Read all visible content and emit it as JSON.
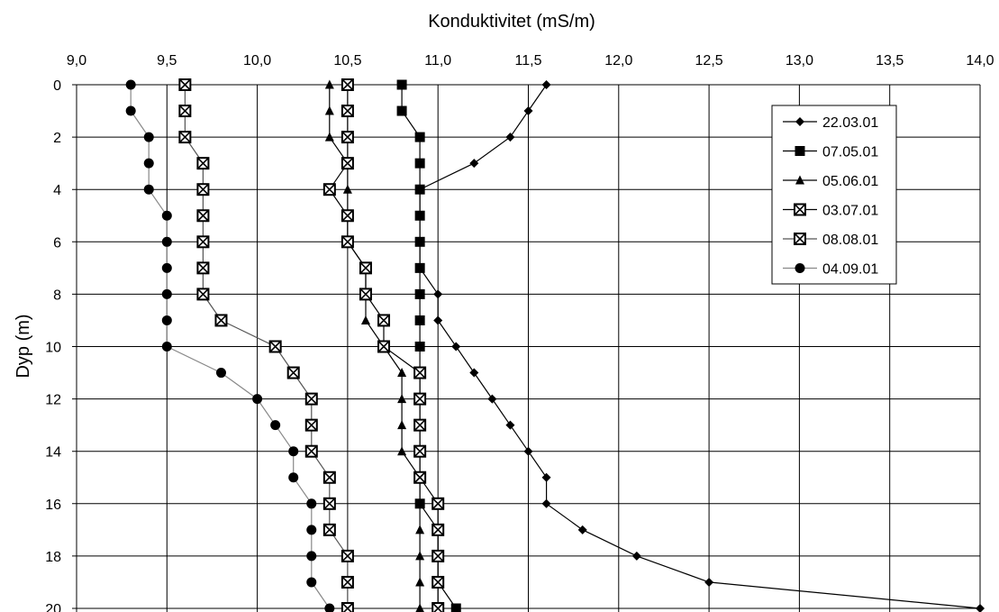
{
  "chart_data": {
    "type": "line",
    "xlabel": "Konduktivitet (mS/m)",
    "ylabel": "Dyp (m)",
    "xlim": [
      9.0,
      14.0
    ],
    "ylim": [
      0,
      20
    ],
    "y_inverted": true,
    "x_axis_position": "top",
    "xticks": [
      "9,0",
      "9,5",
      "10,0",
      "10,5",
      "11,0",
      "11,5",
      "12,0",
      "12,5",
      "13,0",
      "13,5",
      "14,0"
    ],
    "yticks": [
      "0",
      "2",
      "4",
      "6",
      "8",
      "10",
      "12",
      "14",
      "16",
      "18",
      "20"
    ],
    "grid": true,
    "legend_position": "top-right",
    "depths": [
      0,
      1,
      2,
      3,
      4,
      5,
      6,
      7,
      8,
      9,
      10,
      11,
      12,
      13,
      14,
      15,
      16,
      17,
      18,
      19,
      20
    ],
    "series": [
      {
        "name": "22.03.01",
        "marker": "diamond",
        "line_color": "#000000",
        "points": [
          [
            11.6,
            0
          ],
          [
            11.5,
            1
          ],
          [
            11.4,
            2
          ],
          [
            11.2,
            3
          ],
          [
            10.9,
            4
          ],
          [
            10.9,
            5
          ],
          [
            10.9,
            6
          ],
          [
            10.9,
            7
          ],
          [
            11.0,
            8
          ],
          [
            11.0,
            9
          ],
          [
            11.1,
            10
          ],
          [
            11.2,
            11
          ],
          [
            11.3,
            12
          ],
          [
            11.4,
            13
          ],
          [
            11.5,
            14
          ],
          [
            11.6,
            15
          ],
          [
            11.6,
            16
          ],
          [
            11.8,
            17
          ],
          [
            12.1,
            18
          ],
          [
            12.5,
            19
          ],
          [
            14.0,
            20
          ]
        ]
      },
      {
        "name": "07.05.01",
        "marker": "square",
        "line_color": "#000000",
        "points": [
          [
            10.8,
            0
          ],
          [
            10.8,
            1
          ],
          [
            10.9,
            2
          ],
          [
            10.9,
            3
          ],
          [
            10.9,
            4
          ],
          [
            10.9,
            5
          ],
          [
            10.9,
            6
          ],
          [
            10.9,
            7
          ],
          [
            10.9,
            8
          ],
          [
            10.9,
            9
          ],
          [
            10.9,
            10
          ],
          [
            10.9,
            11
          ],
          [
            10.9,
            12
          ],
          [
            10.9,
            13
          ],
          [
            10.9,
            14
          ],
          [
            10.9,
            15
          ],
          [
            10.9,
            16
          ],
          [
            11.0,
            17
          ],
          [
            11.0,
            18
          ],
          [
            11.0,
            19
          ],
          [
            11.1,
            20
          ]
        ]
      },
      {
        "name": "05.06.01",
        "marker": "triangle",
        "line_color": "#000000",
        "points": [
          [
            10.4,
            0
          ],
          [
            10.4,
            1
          ],
          [
            10.4,
            2
          ],
          [
            10.5,
            3
          ],
          [
            10.5,
            4
          ],
          [
            10.5,
            5
          ],
          [
            10.5,
            6
          ],
          [
            10.6,
            7
          ],
          [
            10.6,
            8
          ],
          [
            10.6,
            9
          ],
          [
            10.7,
            10
          ],
          [
            10.8,
            11
          ],
          [
            10.8,
            12
          ],
          [
            10.8,
            13
          ],
          [
            10.8,
            14
          ],
          [
            10.9,
            15
          ],
          [
            10.9,
            16
          ],
          [
            10.9,
            17
          ],
          [
            10.9,
            18
          ],
          [
            10.9,
            19
          ],
          [
            10.9,
            20
          ]
        ]
      },
      {
        "name": "03.07.01",
        "marker": "square-x",
        "line_color": "#000000",
        "points": [
          [
            10.5,
            0
          ],
          [
            10.5,
            1
          ],
          [
            10.5,
            2
          ],
          [
            10.5,
            3
          ],
          [
            10.4,
            4
          ],
          [
            10.5,
            5
          ],
          [
            10.5,
            6
          ],
          [
            10.6,
            7
          ],
          [
            10.6,
            8
          ],
          [
            10.7,
            9
          ],
          [
            10.7,
            10
          ],
          [
            10.9,
            11
          ],
          [
            10.9,
            12
          ],
          [
            10.9,
            13
          ],
          [
            10.9,
            14
          ],
          [
            10.9,
            15
          ],
          [
            11.0,
            16
          ],
          [
            11.0,
            17
          ],
          [
            11.0,
            18
          ],
          [
            11.0,
            19
          ],
          [
            11.0,
            20
          ]
        ]
      },
      {
        "name": "08.08.01",
        "marker": "square-x",
        "line_color": "#555555",
        "points": [
          [
            9.6,
            0
          ],
          [
            9.6,
            1
          ],
          [
            9.6,
            2
          ],
          [
            9.7,
            3
          ],
          [
            9.7,
            4
          ],
          [
            9.7,
            5
          ],
          [
            9.7,
            6
          ],
          [
            9.7,
            7
          ],
          [
            9.7,
            8
          ],
          [
            9.8,
            9
          ],
          [
            10.1,
            10
          ],
          [
            10.2,
            11
          ],
          [
            10.3,
            12
          ],
          [
            10.3,
            13
          ],
          [
            10.3,
            14
          ],
          [
            10.4,
            15
          ],
          [
            10.4,
            16
          ],
          [
            10.4,
            17
          ],
          [
            10.5,
            18
          ],
          [
            10.5,
            19
          ],
          [
            10.5,
            20
          ]
        ]
      },
      {
        "name": "04.09.01",
        "marker": "circle",
        "line_color": "#888888",
        "points": [
          [
            9.3,
            0
          ],
          [
            9.3,
            1
          ],
          [
            9.4,
            2
          ],
          [
            9.4,
            3
          ],
          [
            9.4,
            4
          ],
          [
            9.5,
            5
          ],
          [
            9.5,
            6
          ],
          [
            9.5,
            7
          ],
          [
            9.5,
            8
          ],
          [
            9.5,
            9
          ],
          [
            9.5,
            10
          ],
          [
            9.8,
            11
          ],
          [
            10.0,
            12
          ],
          [
            10.1,
            13
          ],
          [
            10.2,
            14
          ],
          [
            10.2,
            15
          ],
          [
            10.3,
            16
          ],
          [
            10.3,
            17
          ],
          [
            10.3,
            18
          ],
          [
            10.3,
            19
          ],
          [
            10.4,
            20
          ]
        ]
      }
    ]
  }
}
